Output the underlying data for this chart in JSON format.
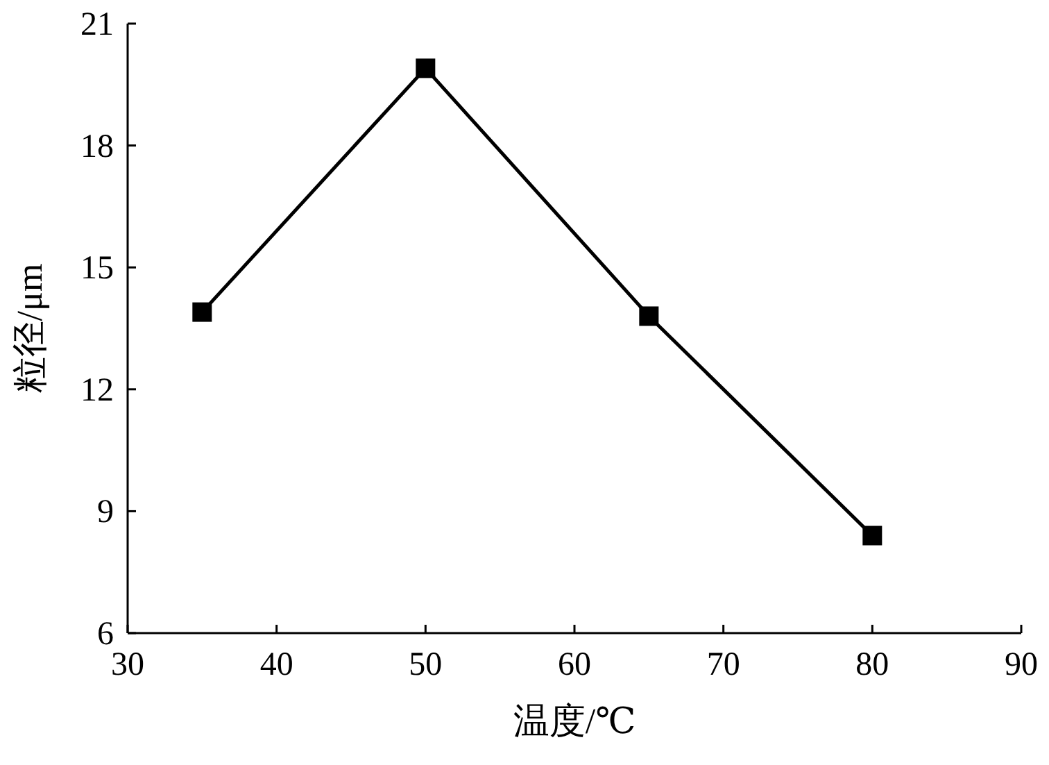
{
  "chart_data": {
    "type": "line",
    "xlabel": "温度/℃",
    "ylabel": "粒径/μm",
    "x": [
      35,
      50,
      65,
      80
    ],
    "series": [
      {
        "color": "#000000",
        "values": [
          13.9,
          19.9,
          13.8,
          8.4
        ]
      }
    ],
    "xlim": [
      30,
      90
    ],
    "xticks": [
      30,
      40,
      50,
      60,
      70,
      80,
      90
    ],
    "ylim": [
      6,
      21
    ],
    "yticks": [
      6,
      9,
      12,
      15,
      18,
      21
    ],
    "marker": "square",
    "line_style": "solid",
    "grid": false
  }
}
